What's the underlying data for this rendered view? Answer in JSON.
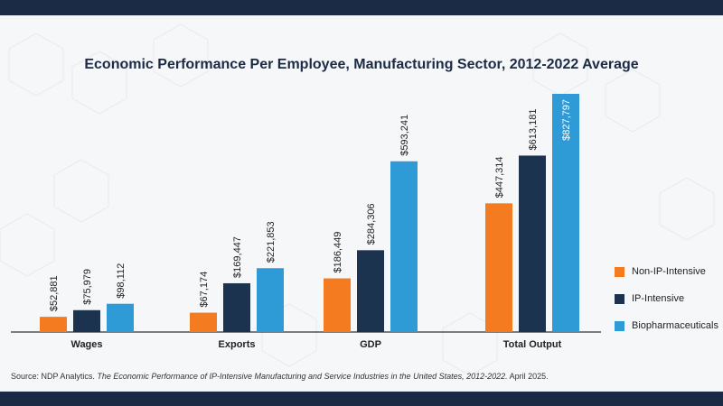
{
  "header": {
    "title": "Economic Performance Per Employee, Manufacturing Sector, 2012-2022 Average"
  },
  "source": {
    "prefix": "Source: NDP Analytics.",
    "publication": "The Economic Performance of IP-Intensive Manufacturing and Service Industries in the United States, 2012-2022.",
    "date": "April 2025."
  },
  "colors": {
    "bar_border_dark": "#1c2b45",
    "non_ip": "#f47b20",
    "ip": "#1c3350",
    "bio": "#2e9ad6",
    "background": "#f6f7f9"
  },
  "chart_data": {
    "type": "bar",
    "title": "Economic Performance Per Employee, Manufacturing Sector, 2012-2022 Average",
    "categories": [
      "Wages",
      "Exports",
      "GDP",
      "Total Output"
    ],
    "series": [
      {
        "name": "Non-IP-Intensive",
        "color": "#f47b20",
        "values": [
          52881,
          67174,
          186449,
          447314
        ],
        "labels": [
          "$52,881",
          "$67,174",
          "$186,449",
          "$447,314"
        ]
      },
      {
        "name": "IP-Intensive",
        "color": "#1c3350",
        "values": [
          75979,
          169447,
          284306,
          613181
        ],
        "labels": [
          "$75,979",
          "$169,447",
          "$284,306",
          "$613,181"
        ]
      },
      {
        "name": "Biopharmaceuticals",
        "color": "#2e9ad6",
        "values": [
          98112,
          221853,
          593241,
          827797
        ],
        "labels": [
          "$98,112",
          "$221,853",
          "$593,241",
          "$827,797"
        ]
      }
    ],
    "ylim": [
      0,
      827797
    ],
    "legend_position": "right",
    "grid": false
  }
}
